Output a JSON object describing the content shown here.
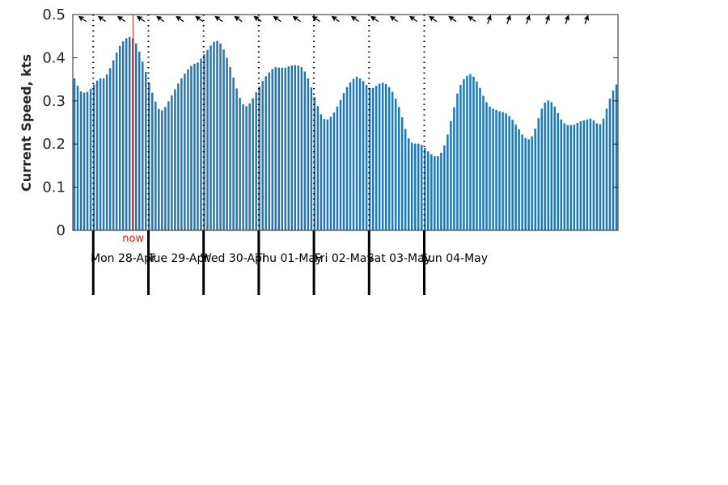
{
  "colors": {
    "bar": "#1f77b4",
    "now_line": "#e41a1c",
    "axis": "#262626",
    "day_line": "#000000"
  },
  "chart_data": {
    "type": "bar",
    "title": "",
    "xlabel": "",
    "ylabel": "Current Speed, kts",
    "ylim": [
      0,
      0.5
    ],
    "yticks": [
      0,
      0.1,
      0.2,
      0.3,
      0.4,
      0.5
    ],
    "ytick_labels": [
      "0",
      "0.1",
      "0.2",
      "0.3",
      "0.4",
      "0.5"
    ],
    "grid": false,
    "x_unit": "hours",
    "x_range": [
      0,
      168
    ],
    "day_boundaries": [
      6.3,
      23.3,
      40.3,
      57.3,
      74.3,
      91.3,
      108.3
    ],
    "day_labels": [
      "Mon 28-Apr",
      "Tue 29-Apr",
      "Wed 30-Apr",
      "Thu 01-May",
      "Fri 02-May",
      "Sat 03-May",
      "Sun 04-May"
    ],
    "now_hour": 18.6,
    "now_label": "now",
    "direction_arrow_icon": "current-direction-arrow-icon",
    "series": [
      {
        "x": [
          0,
          1,
          2,
          3,
          4,
          5,
          6,
          7,
          8,
          9,
          10,
          11,
          12,
          13,
          14,
          15,
          16,
          17,
          18,
          19,
          20,
          21,
          22,
          23,
          24,
          25,
          26,
          27,
          28,
          29,
          30,
          31,
          32,
          33,
          34,
          35,
          36,
          37,
          38,
          39,
          40,
          41,
          42,
          43,
          44,
          45,
          46,
          47,
          48,
          49,
          50,
          51,
          52,
          53,
          54,
          55,
          56,
          57,
          58,
          59,
          60,
          61,
          62,
          63,
          64,
          65,
          66,
          67,
          68,
          69,
          70,
          71,
          72,
          73,
          74,
          75,
          76,
          77,
          78,
          79,
          80,
          81,
          82,
          83,
          84,
          85,
          86,
          87,
          88,
          89,
          90,
          91,
          92,
          93,
          94,
          95,
          96,
          97,
          98,
          99,
          100,
          101,
          102,
          103,
          104,
          105,
          106,
          107,
          108,
          109,
          110,
          111,
          112,
          113,
          114,
          115,
          116,
          117,
          118
        ],
        "values": [
          0.352,
          0.335,
          0.322,
          0.319,
          0.321,
          0.328,
          0.338,
          0.347,
          0.352,
          0.352,
          0.361,
          0.376,
          0.394,
          0.412,
          0.427,
          0.438,
          0.445,
          0.448,
          0.445,
          0.433,
          0.414,
          0.391,
          0.367,
          0.343,
          0.319,
          0.298,
          0.281,
          0.278,
          0.286,
          0.299,
          0.313,
          0.327,
          0.34,
          0.352,
          0.363,
          0.373,
          0.381,
          0.386,
          0.389,
          0.398,
          0.408,
          0.418,
          0.428,
          0.437,
          0.439,
          0.433,
          0.419,
          0.4,
          0.378,
          0.354,
          0.329,
          0.307,
          0.292,
          0.288,
          0.294,
          0.306,
          0.32,
          0.333,
          0.346,
          0.357,
          0.366,
          0.374,
          0.378,
          0.377,
          0.377,
          0.377,
          0.38,
          0.382,
          0.383,
          0.382,
          0.378,
          0.368,
          0.352,
          0.331,
          0.309,
          0.288,
          0.269,
          0.258,
          0.257,
          0.263,
          0.273,
          0.287,
          0.302,
          0.318,
          0.332,
          0.343,
          0.351,
          0.356,
          0.352,
          0.346,
          0.337,
          0.33,
          0.33,
          0.335,
          0.34,
          0.342,
          0.339,
          0.332,
          0.321,
          0.305,
          0.286,
          0.262,
          0.235,
          0.213,
          0.203,
          0.201,
          0.201,
          0.198,
          0.191,
          0.183,
          0.176,
          0.172,
          0.172,
          0.18,
          0.197,
          0.222,
          0.253,
          0.285,
          0.317
        ],
        "x2": [
          119,
          120,
          121,
          122,
          123,
          124,
          125,
          126,
          127,
          128,
          129,
          130,
          131,
          132,
          133,
          134,
          135,
          136,
          137,
          138,
          139,
          140,
          141,
          142,
          143,
          144,
          145,
          146,
          147,
          148,
          149,
          150,
          151,
          152,
          153,
          154,
          155,
          156,
          157,
          158,
          159,
          160,
          161,
          162,
          163,
          164,
          165,
          166,
          167
        ],
        "values2": [
          0.337,
          0.35,
          0.358,
          0.362,
          0.356,
          0.345,
          0.33,
          0.312,
          0.297,
          0.287,
          0.282,
          0.279,
          0.276,
          0.274,
          0.271,
          0.265,
          0.256,
          0.245,
          0.234,
          0.222,
          0.214,
          0.211,
          0.218,
          0.236,
          0.26,
          0.282,
          0.296,
          0.301,
          0.297,
          0.287,
          0.272,
          0.257,
          0.248,
          0.244,
          0.244,
          0.245,
          0.249,
          0.253,
          0.255,
          0.257,
          0.259,
          0.255,
          0.248,
          0.246,
          0.259,
          0.282,
          0.305,
          0.324,
          0.338
        ]
      }
    ]
  }
}
